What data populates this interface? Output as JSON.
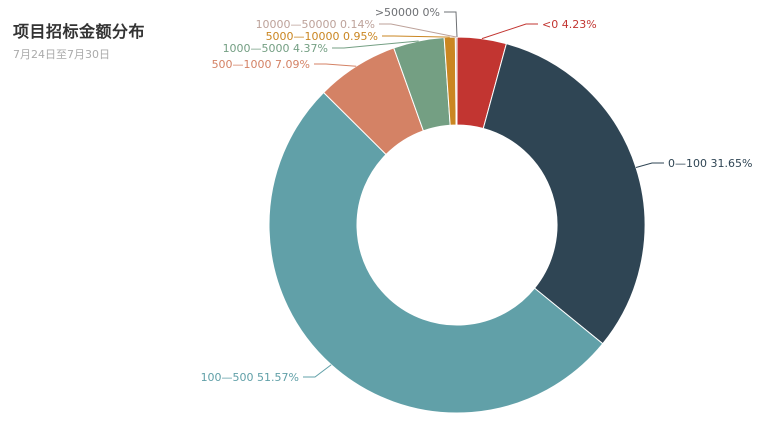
{
  "chart_data": {
    "type": "pie",
    "variant": "donut",
    "title": "项目招标金额分布",
    "subtitle": "7月24日至7月30日",
    "legend": "none",
    "slices": [
      {
        "label": "<0",
        "value": 4.23,
        "color": "#c23531"
      },
      {
        "label": "0—100",
        "value": 31.65,
        "color": "#2f4554"
      },
      {
        "label": "100—500",
        "value": 51.57,
        "color": "#61a0a8"
      },
      {
        "label": "500—1000",
        "value": 7.09,
        "color": "#d48265"
      },
      {
        "label": "1000—5000",
        "value": 4.37,
        "color": "#749f83"
      },
      {
        "label": "5000—10000",
        "value": 0.95,
        "color": "#ca8622"
      },
      {
        "label": "10000—50000",
        "value": 0.14,
        "color": "#bda29a"
      },
      {
        "label": ">50000",
        "value": 0,
        "color": "#6e7074"
      }
    ]
  }
}
